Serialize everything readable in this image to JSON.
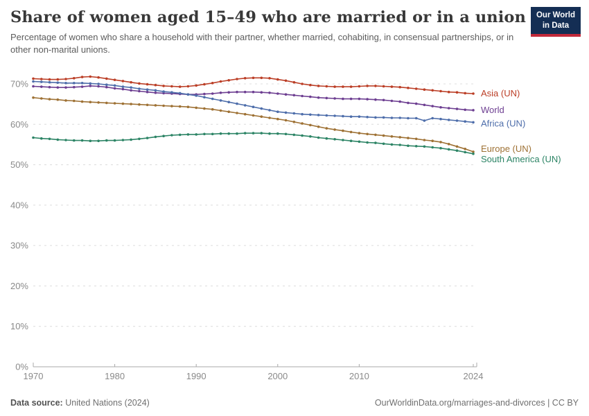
{
  "header": {
    "title": "Share of women aged 15–49 who are married or in a union",
    "subtitle": "Percentage of women who share a household with their partner, whether married, cohabiting, in consensual partnerships, or in other non-marital unions.",
    "logo_line1": "Our World",
    "logo_line2": "in Data",
    "logo_bg_color": "#142e54",
    "logo_stripe_color": "#c2293a"
  },
  "footer": {
    "datasource_label": "Data source:",
    "datasource_value": "United Nations (2024)",
    "attribution": "OurWorldinData.org/marriages-and-divorces | CC BY"
  },
  "chart_data": {
    "type": "line",
    "title": "Share of women aged 15–49 who are married or in a union",
    "subtitle": "Percentage of women who share a household with their partner, whether married, cohabiting, in consensual partnerships, or in other non-marital unions.",
    "xlabel": "",
    "ylabel": "",
    "ylim": [
      0,
      73
    ],
    "xlim": [
      1970,
      2024
    ],
    "yticks": [
      0,
      10,
      20,
      30,
      40,
      50,
      60,
      70
    ],
    "ytick_suffix": "%",
    "xticks": [
      1970,
      1980,
      1990,
      2000,
      2010,
      2024
    ],
    "grid": "horizontal-dashed",
    "legend_position": "right-end-labels",
    "marker": "point-per-year",
    "axis_color": "#a8a8a8",
    "gridline_color": "#dcdcdc",
    "tick_label_color": "#8a8a8a",
    "years": [
      1970,
      1971,
      1972,
      1973,
      1974,
      1975,
      1976,
      1977,
      1978,
      1979,
      1980,
      1981,
      1982,
      1983,
      1984,
      1985,
      1986,
      1987,
      1988,
      1989,
      1990,
      1991,
      1992,
      1993,
      1994,
      1995,
      1996,
      1997,
      1998,
      1999,
      2000,
      2001,
      2002,
      2003,
      2004,
      2005,
      2006,
      2007,
      2008,
      2009,
      2010,
      2011,
      2012,
      2013,
      2014,
      2015,
      2016,
      2017,
      2018,
      2019,
      2020,
      2021,
      2022,
      2023,
      2024
    ],
    "series": [
      {
        "name": "Asia (UN)",
        "color": "#bb3e26",
        "label_dy": 0,
        "values": [
          71.3,
          71.2,
          71.1,
          71.1,
          71.2,
          71.4,
          71.7,
          71.8,
          71.6,
          71.3,
          71.0,
          70.7,
          70.4,
          70.1,
          69.9,
          69.7,
          69.5,
          69.4,
          69.3,
          69.4,
          69.6,
          69.9,
          70.2,
          70.6,
          70.9,
          71.2,
          71.4,
          71.5,
          71.5,
          71.4,
          71.1,
          70.8,
          70.4,
          70.0,
          69.7,
          69.5,
          69.4,
          69.3,
          69.3,
          69.3,
          69.4,
          69.5,
          69.5,
          69.4,
          69.3,
          69.2,
          69.0,
          68.8,
          68.6,
          68.4,
          68.2,
          68.0,
          67.9,
          67.7,
          67.6
        ]
      },
      {
        "name": "World",
        "color": "#6d3e91",
        "label_dy": 0,
        "values": [
          69.4,
          69.3,
          69.2,
          69.1,
          69.1,
          69.2,
          69.3,
          69.5,
          69.4,
          69.2,
          68.9,
          68.7,
          68.4,
          68.2,
          68.0,
          67.8,
          67.7,
          67.6,
          67.5,
          67.4,
          67.4,
          67.5,
          67.6,
          67.8,
          67.9,
          68.0,
          68.0,
          68.0,
          67.9,
          67.8,
          67.6,
          67.4,
          67.2,
          67.0,
          66.8,
          66.6,
          66.5,
          66.4,
          66.3,
          66.3,
          66.3,
          66.2,
          66.1,
          66.0,
          65.8,
          65.6,
          65.3,
          65.1,
          64.8,
          64.5,
          64.2,
          64.0,
          63.8,
          63.6,
          63.5
        ]
      },
      {
        "name": "Africa (UN)",
        "color": "#4d6daa",
        "label_dy": 2,
        "values": [
          70.6,
          70.5,
          70.4,
          70.3,
          70.2,
          70.2,
          70.2,
          70.1,
          70.0,
          69.8,
          69.6,
          69.3,
          69.1,
          68.8,
          68.6,
          68.4,
          68.1,
          67.9,
          67.7,
          67.4,
          67.1,
          66.7,
          66.3,
          65.9,
          65.5,
          65.1,
          64.7,
          64.3,
          63.9,
          63.5,
          63.1,
          62.9,
          62.7,
          62.5,
          62.4,
          62.3,
          62.2,
          62.1,
          62.0,
          61.9,
          61.9,
          61.8,
          61.7,
          61.7,
          61.6,
          61.6,
          61.5,
          61.5,
          60.9,
          61.5,
          61.3,
          61.1,
          60.9,
          60.7,
          60.5
        ]
      },
      {
        "name": "Europe (UN)",
        "color": "#9e7134",
        "label_dy": -4,
        "values": [
          66.6,
          66.4,
          66.2,
          66.1,
          65.9,
          65.8,
          65.6,
          65.5,
          65.4,
          65.3,
          65.2,
          65.1,
          65.0,
          64.9,
          64.8,
          64.7,
          64.6,
          64.5,
          64.4,
          64.3,
          64.1,
          63.9,
          63.7,
          63.4,
          63.1,
          62.8,
          62.5,
          62.2,
          61.9,
          61.6,
          61.3,
          61.0,
          60.6,
          60.2,
          59.8,
          59.4,
          59.0,
          58.7,
          58.4,
          58.1,
          57.8,
          57.6,
          57.4,
          57.2,
          57.0,
          56.8,
          56.6,
          56.4,
          56.1,
          55.9,
          55.6,
          55.1,
          54.5,
          53.9,
          53.2
        ]
      },
      {
        "name": "South America (UN)",
        "color": "#2c8465",
        "label_dy": 8,
        "values": [
          56.7,
          56.5,
          56.4,
          56.2,
          56.1,
          56.0,
          56.0,
          55.9,
          55.9,
          56.0,
          56.0,
          56.1,
          56.2,
          56.4,
          56.6,
          56.9,
          57.1,
          57.3,
          57.4,
          57.5,
          57.5,
          57.6,
          57.6,
          57.7,
          57.7,
          57.7,
          57.8,
          57.8,
          57.8,
          57.7,
          57.7,
          57.6,
          57.4,
          57.2,
          57.0,
          56.7,
          56.5,
          56.3,
          56.1,
          55.9,
          55.7,
          55.5,
          55.4,
          55.2,
          55.0,
          54.9,
          54.7,
          54.6,
          54.5,
          54.3,
          54.1,
          53.8,
          53.5,
          53.1,
          52.7
        ]
      }
    ]
  }
}
